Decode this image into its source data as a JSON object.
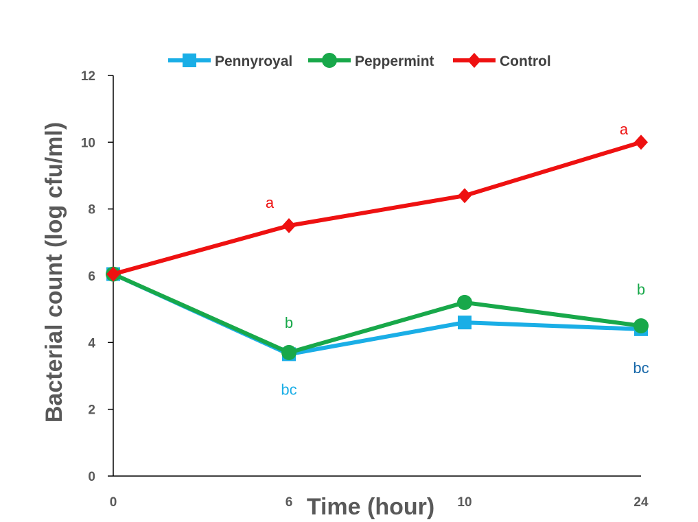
{
  "chart_data": {
    "type": "line",
    "categories": [
      "0",
      "6",
      "10",
      "24"
    ],
    "ylabel": "Bacterial count (log cfu/ml)",
    "xlabel": "Time (hour)",
    "ylim": [
      0,
      12
    ],
    "yticks": [
      0,
      2,
      4,
      6,
      8,
      10,
      12
    ],
    "legend_position": "top",
    "series": [
      {
        "name": "Pennyroyal",
        "color": "#1aaee6",
        "marker": "square",
        "values": [
          6.05,
          3.65,
          4.6,
          4.4
        ]
      },
      {
        "name": "Peppermint",
        "color": "#18a84a",
        "marker": "circle",
        "values": [
          6.05,
          3.7,
          5.2,
          4.5
        ]
      },
      {
        "name": "Control",
        "color": "#ee1111",
        "marker": "diamond",
        "values": [
          6.05,
          7.5,
          8.4,
          10.0
        ]
      }
    ],
    "annotations": [
      {
        "text": "a",
        "category": "6",
        "y": 8.2,
        "color": "#ee1111"
      },
      {
        "text": "a",
        "category": "24",
        "y": 10.4,
        "color": "#ee1111"
      },
      {
        "text": "b",
        "category": "6",
        "y": 4.6,
        "color": "#18a84a"
      },
      {
        "text": "b",
        "category": "24",
        "y": 5.6,
        "color": "#18a84a"
      },
      {
        "text": "bc",
        "category": "6",
        "y": 2.6,
        "color": "#1aaee6"
      },
      {
        "text": "bc",
        "category": "24",
        "y": 3.25,
        "color": "#1566a8"
      }
    ]
  }
}
